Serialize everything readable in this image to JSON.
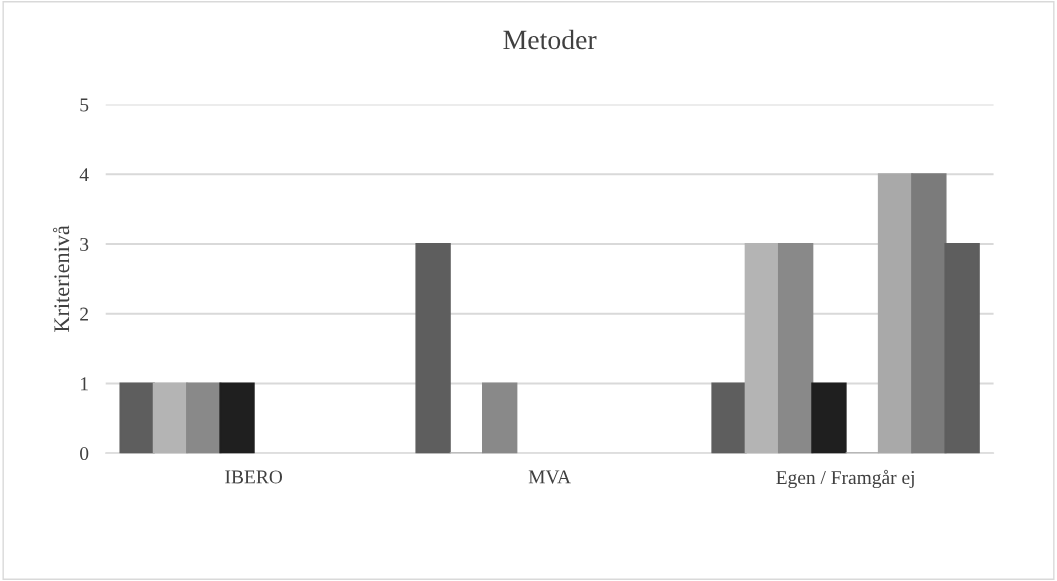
{
  "chart_data": {
    "type": "bar",
    "title": "Metoder",
    "ylabel": "Kriterienivå",
    "categories": [
      "IBERO",
      "MVA",
      "Egen / Framgår ej"
    ],
    "series": [
      {
        "color": "#5e5e5e",
        "values": [
          1,
          3,
          1
        ]
      },
      {
        "color": "#b4b4b4",
        "values": [
          1,
          0,
          3
        ]
      },
      {
        "color": "#898989",
        "values": [
          1,
          1,
          3
        ]
      },
      {
        "color": "#1f1f1f",
        "values": [
          1,
          null,
          1
        ]
      },
      {
        "color": "#aaaaaa",
        "values": [
          null,
          null,
          0
        ]
      },
      {
        "color": "#a9a9a9",
        "values": [
          null,
          null,
          4
        ]
      },
      {
        "color": "#7b7b7b",
        "values": [
          null,
          null,
          4
        ]
      },
      {
        "color": "#5e5e5e",
        "values": [
          null,
          null,
          3
        ]
      }
    ],
    "ylim": [
      0,
      5
    ],
    "yticks": [
      0,
      1,
      2,
      3,
      4,
      5
    ],
    "grid": "y",
    "legend": false
  }
}
